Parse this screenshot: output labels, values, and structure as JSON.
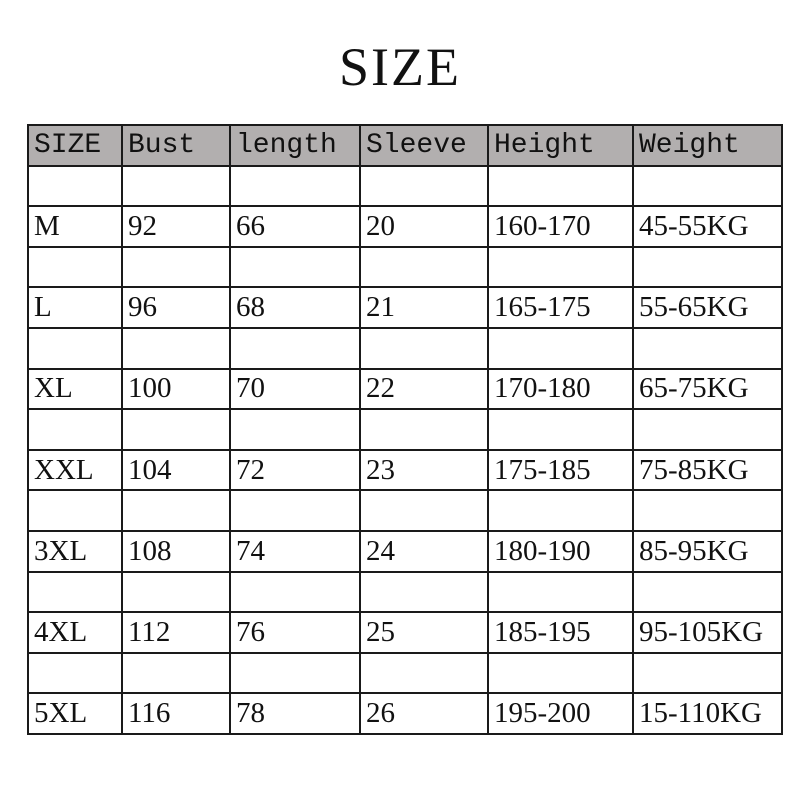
{
  "title": "SIZE",
  "headers": [
    "SIZE",
    "Bust",
    "length",
    "Sleeve",
    "Height",
    "Weight"
  ],
  "rows": [
    [
      "M",
      "92",
      "66",
      "20",
      "160-170",
      "45-55KG"
    ],
    [
      "L",
      "96",
      "68",
      "21",
      "165-175",
      "55-65KG"
    ],
    [
      "XL",
      "100",
      "70",
      "22",
      "170-180",
      "65-75KG"
    ],
    [
      "XXL",
      "104",
      "72",
      "23",
      "175-185",
      "75-85KG"
    ],
    [
      "3XL",
      "108",
      "74",
      "24",
      "180-190",
      "85-95KG"
    ],
    [
      "4XL",
      "112",
      "76",
      "25",
      "185-195",
      "95-105KG"
    ],
    [
      "5XL",
      "116",
      "78",
      "26",
      "195-200",
      "15-110KG"
    ]
  ]
}
